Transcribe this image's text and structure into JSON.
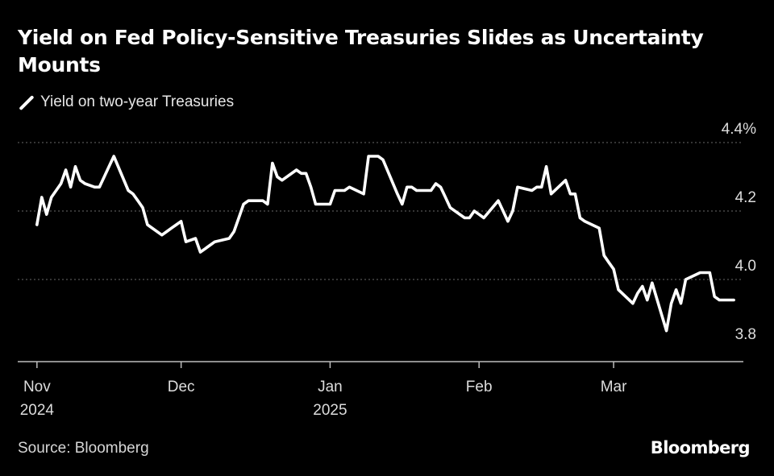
{
  "chart_data": {
    "type": "line",
    "title": "Yield on Fed Policy-Sensitive Treasuries Slides as Uncertainty Mounts",
    "legend": [
      "Yield on two-year Treasuries"
    ],
    "y_ticks": [
      "4.4%",
      "4.2",
      "4.0",
      "3.8"
    ],
    "y_tick_values": [
      4.4,
      4.2,
      4.0,
      3.8
    ],
    "ylim": [
      3.76,
      4.44
    ],
    "x_ticks": [
      {
        "label": "Nov",
        "sub": "2024",
        "day": 0
      },
      {
        "label": "Dec",
        "sub": "",
        "day": 30
      },
      {
        "label": "Jan",
        "sub": "2025",
        "day": 61
      },
      {
        "label": "Feb",
        "sub": "",
        "day": 92
      },
      {
        "label": "Mar",
        "sub": "",
        "day": 120
      }
    ],
    "xlim": [
      -4,
      147
    ],
    "grid": true,
    "series": [
      {
        "name": "Yield on two-year Treasuries",
        "day": [
          0,
          1,
          2,
          3,
          5,
          6,
          7,
          8,
          9,
          10,
          12,
          13,
          14,
          15,
          16,
          19,
          20,
          21,
          22,
          23,
          26,
          27,
          28,
          29,
          30,
          31,
          33,
          34,
          35,
          36,
          37,
          40,
          41,
          42,
          43,
          44,
          47,
          48,
          49,
          50,
          51,
          54,
          55,
          56,
          57,
          58,
          61,
          62,
          63,
          64,
          65,
          68,
          69,
          70,
          71,
          72,
          75,
          76,
          77,
          78,
          79,
          82,
          83,
          84,
          85,
          86,
          89,
          90,
          91,
          92,
          93,
          96,
          97,
          98,
          99,
          100,
          103,
          104,
          105,
          106,
          107,
          110,
          111,
          112,
          113,
          114,
          117,
          118,
          119,
          120,
          121,
          124,
          125,
          126,
          127,
          128,
          131,
          132,
          133,
          134,
          135,
          138,
          139,
          140,
          141,
          142,
          145
        ],
        "values": [
          4.16,
          4.24,
          4.19,
          4.24,
          4.28,
          4.32,
          4.27,
          4.33,
          4.29,
          4.28,
          4.27,
          4.27,
          4.3,
          4.33,
          4.36,
          4.26,
          4.25,
          4.23,
          4.21,
          4.16,
          4.13,
          4.14,
          4.15,
          4.16,
          4.17,
          4.11,
          4.12,
          4.08,
          4.09,
          4.1,
          4.11,
          4.12,
          4.14,
          4.18,
          4.22,
          4.23,
          4.23,
          4.22,
          4.34,
          4.3,
          4.29,
          4.32,
          4.31,
          4.31,
          4.27,
          4.22,
          4.22,
          4.26,
          4.26,
          4.26,
          4.27,
          4.25,
          4.36,
          4.36,
          4.36,
          4.35,
          4.25,
          4.22,
          4.27,
          4.27,
          4.26,
          4.26,
          4.28,
          4.27,
          4.24,
          4.21,
          4.18,
          4.18,
          4.2,
          4.19,
          4.18,
          4.23,
          4.2,
          4.17,
          4.2,
          4.27,
          4.26,
          4.27,
          4.27,
          4.33,
          4.25,
          4.29,
          4.25,
          4.25,
          4.18,
          4.17,
          4.15,
          4.07,
          4.05,
          4.03,
          3.97,
          3.93,
          3.96,
          3.98,
          3.94,
          3.99,
          3.85,
          3.93,
          3.97,
          3.93,
          4.0,
          4.02,
          4.02,
          4.02,
          3.95,
          3.94,
          3.94
        ]
      }
    ],
    "line_color": "#ffffff",
    "grid_color": "#6a6a6a",
    "axis_color": "#bdbdbd"
  },
  "source": "Source: Bloomberg",
  "brand": "Bloomberg"
}
